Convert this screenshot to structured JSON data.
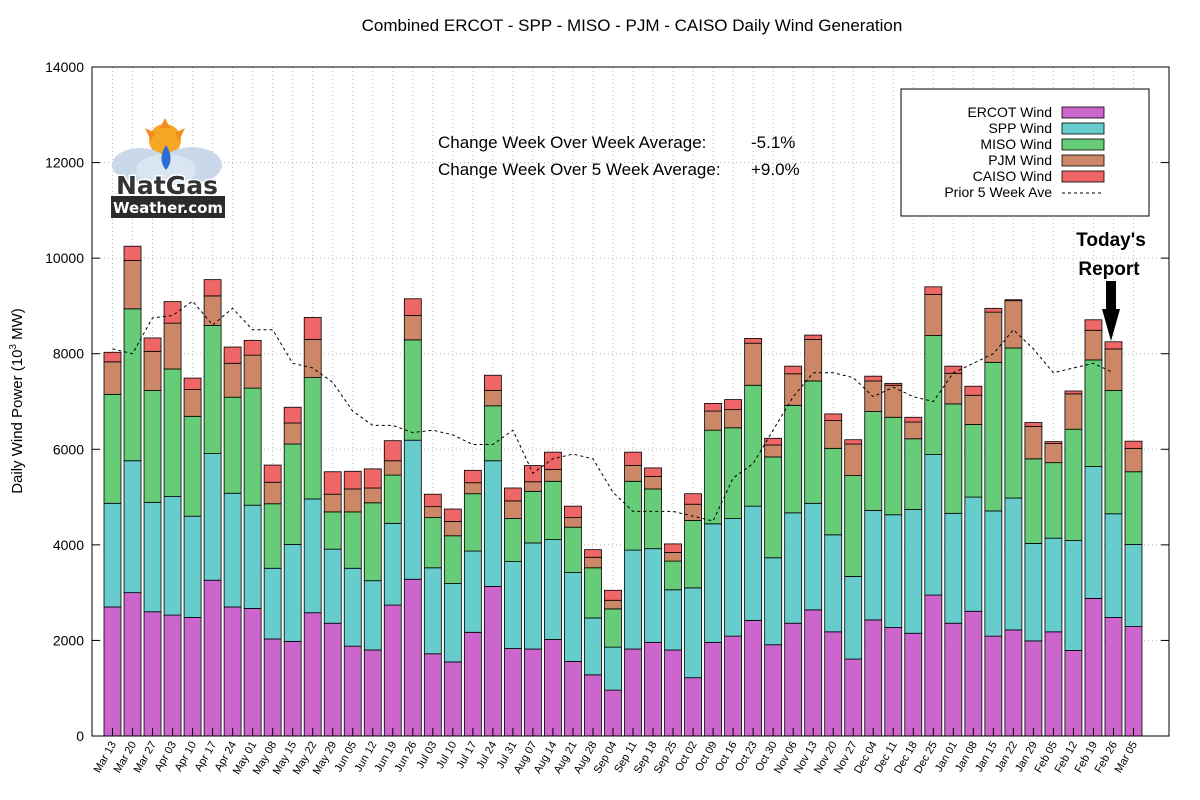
{
  "chart_data": {
    "type": "bar",
    "stacked": true,
    "title": "Combined ERCOT - SPP - MISO - PJM - CAISO Daily Wind Generation",
    "ylabel": "Daily Wind Power (10",
    "ylabel_sup": "3",
    "ylabel_tail": " MW)",
    "xlabel": "",
    "ylim": [
      0,
      14000
    ],
    "yticks": [
      "0",
      "2000",
      "4000",
      "6000",
      "8000",
      "10000",
      "12000",
      "14000"
    ],
    "categories": [
      "Mar 13",
      "Mar 20",
      "Mar 27",
      "Apr 03",
      "Apr 10",
      "Apr 17",
      "Apr 24",
      "May 01",
      "May 08",
      "May 15",
      "May 22",
      "May 29",
      "Jun 05",
      "Jun 12",
      "Jun 19",
      "Jun 26",
      "Jul 03",
      "Jul 10",
      "Jul 17",
      "Jul 24",
      "Jul 31",
      "Aug 07",
      "Aug 14",
      "Aug 21",
      "Aug 28",
      "Sep 04",
      "Sep 11",
      "Sep 18",
      "Sep 25",
      "Oct 02",
      "Oct 09",
      "Oct 16",
      "Oct 23",
      "Oct 30",
      "Nov 06",
      "Nov 13",
      "Nov 20",
      "Nov 27",
      "Dec 04",
      "Dec 11",
      "Dec 18",
      "Dec 25",
      "Jan 01",
      "Jan 08",
      "Jan 15",
      "Jan 22",
      "Jan 29",
      "Feb 05",
      "Feb 12",
      "Feb 19",
      "Feb 26",
      "Mar 05"
    ],
    "series": [
      {
        "name": "ERCOT Wind",
        "color": "#cc66cc",
        "values": [
          2700,
          3000,
          2600,
          2530,
          2480,
          3260,
          2700,
          2670,
          2030,
          1980,
          2580,
          2360,
          1880,
          1800,
          2740,
          3280,
          1720,
          1550,
          2170,
          3130,
          1830,
          1820,
          2020,
          1560,
          1280,
          960,
          1820,
          1960,
          1800,
          1220,
          1960,
          2090,
          2420,
          1910,
          2360,
          2640,
          2180,
          1610,
          2430,
          2270,
          2150,
          2950,
          2360,
          2610,
          2090,
          2220,
          1990,
          2180,
          1790,
          2880,
          2480,
          2290
        ]
      },
      {
        "name": "SPP Wind",
        "color": "#66cccc",
        "values": [
          2170,
          2760,
          2290,
          2480,
          2120,
          2650,
          2380,
          2160,
          1480,
          2030,
          2380,
          1550,
          1630,
          1450,
          1710,
          2910,
          1800,
          1640,
          1700,
          2630,
          1820,
          2220,
          2090,
          1860,
          1190,
          900,
          2070,
          1960,
          1260,
          1880,
          2480,
          2460,
          2390,
          1820,
          2310,
          2230,
          2030,
          1730,
          2290,
          2360,
          2590,
          2940,
          2300,
          2390,
          2620,
          2760,
          2040,
          1960,
          2300,
          2760,
          2170,
          1720
        ]
      },
      {
        "name": "MISO Wind",
        "color": "#66cc77",
        "values": [
          2280,
          3180,
          2340,
          2670,
          2090,
          2680,
          2010,
          2450,
          1350,
          2100,
          2540,
          780,
          1180,
          1630,
          1010,
          2100,
          1050,
          1000,
          1200,
          1150,
          900,
          1080,
          1220,
          950,
          1050,
          800,
          1440,
          1250,
          600,
          1410,
          1960,
          1900,
          2530,
          2110,
          2250,
          2560,
          1810,
          2110,
          2070,
          2040,
          1480,
          2490,
          2290,
          1520,
          3110,
          3140,
          1770,
          1580,
          2330,
          2230,
          2580,
          1520
        ]
      },
      {
        "name": "PJM Wind",
        "color": "#cc8866",
        "values": [
          680,
          1010,
          820,
          960,
          560,
          620,
          710,
          690,
          450,
          440,
          800,
          370,
          480,
          310,
          300,
          510,
          230,
          300,
          230,
          320,
          370,
          200,
          250,
          200,
          220,
          180,
          330,
          260,
          180,
          340,
          400,
          380,
          880,
          250,
          660,
          870,
          580,
          660,
          640,
          670,
          350,
          860,
          640,
          610,
          1050,
          990,
          680,
          400,
          740,
          620,
          870,
          490
        ]
      },
      {
        "name": "CAISO Wind",
        "color": "#ee6666",
        "values": [
          200,
          300,
          280,
          450,
          240,
          340,
          340,
          310,
          360,
          330,
          460,
          470,
          370,
          400,
          420,
          350,
          260,
          260,
          260,
          320,
          270,
          340,
          360,
          240,
          160,
          210,
          280,
          180,
          180,
          220,
          160,
          210,
          100,
          140,
          160,
          90,
          140,
          90,
          100,
          40,
          100,
          160,
          150,
          190,
          80,
          20,
          80,
          40,
          60,
          220,
          150,
          150
        ]
      }
    ],
    "prior_5_week_ave": {
      "name": "Prior 5 Week Ave",
      "values": [
        8100,
        8000,
        8750,
        8800,
        9100,
        8600,
        8950,
        8500,
        8500,
        7800,
        7700,
        7400,
        6800,
        6500,
        6500,
        6350,
        6400,
        6300,
        6100,
        6100,
        6400,
        5500,
        5800,
        5900,
        5800,
        5100,
        4700,
        4700,
        4700,
        4600,
        4500,
        5400,
        5700,
        6400,
        7100,
        7600,
        7600,
        7500,
        7100,
        7300,
        7100,
        7000,
        7600,
        7800,
        8000,
        8500,
        8100,
        7600,
        7700,
        7800,
        7600,
        null
      ]
    },
    "legend": [
      "ERCOT Wind",
      "SPP Wind",
      "MISO Wind",
      "PJM Wind",
      "CAISO Wind",
      "Prior 5 Week Ave"
    ],
    "legend_position": "top-right"
  },
  "annotations": {
    "wow_label": "Change Week Over Week Average:",
    "wow_value": "-5.1%",
    "wow_color": "#ee0000",
    "w5_label": "Change Week Over 5 Week Average:",
    "w5_value": "+9.0%",
    "w5_color": "#22aa22",
    "report_line1": "Today's",
    "report_line2": "Report"
  },
  "logo": {
    "name_part1": "NatGas",
    "name_part2": "Weather.com"
  }
}
